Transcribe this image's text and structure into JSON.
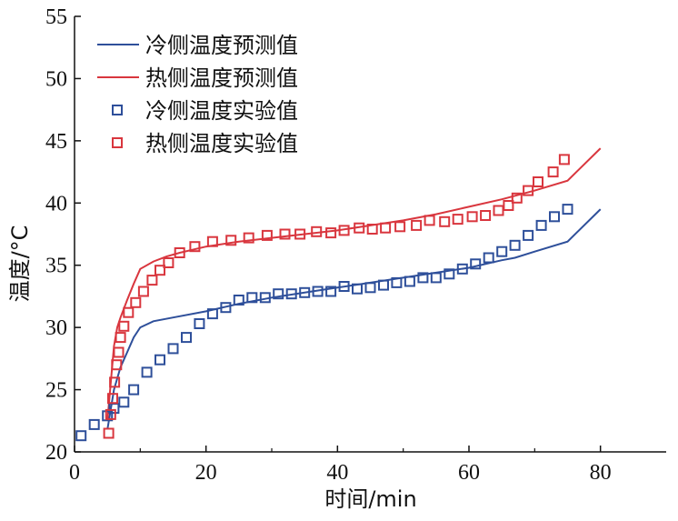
{
  "chart_data": {
    "type": "line",
    "title": "",
    "xlabel": "时间/min",
    "ylabel": "温度/°C",
    "xlim": [
      0,
      90
    ],
    "ylim": [
      20,
      55
    ],
    "xticks": [
      0,
      20,
      40,
      60,
      80
    ],
    "yticks": [
      20,
      25,
      30,
      35,
      40,
      45,
      50,
      55
    ],
    "grid": false,
    "legend_position": "top-left",
    "series": [
      {
        "name": "冷侧温度预测值",
        "kind": "line",
        "color": "#2e4f9a",
        "x": [
          5,
          6,
          7,
          8,
          9,
          10,
          12,
          15,
          20,
          25,
          30,
          35,
          40,
          45,
          50,
          55,
          60,
          65,
          67,
          70,
          75,
          80
        ],
        "y": [
          21.8,
          25.0,
          26.8,
          28.0,
          29.2,
          30.0,
          30.5,
          30.8,
          31.3,
          31.9,
          32.4,
          32.8,
          33.2,
          33.6,
          34.0,
          34.4,
          34.8,
          35.4,
          35.6,
          36.1,
          36.9,
          39.5
        ]
      },
      {
        "name": "热侧温度预测值",
        "kind": "line",
        "color": "#d9363e",
        "x": [
          5,
          5.5,
          6,
          6.5,
          7,
          8,
          9,
          10,
          12,
          14,
          16,
          20,
          25,
          30,
          35,
          40,
          45,
          50,
          55,
          60,
          65,
          70,
          75,
          80
        ],
        "y": [
          22.5,
          25.5,
          28.5,
          30.0,
          30.8,
          32.2,
          33.5,
          34.7,
          35.3,
          35.7,
          36.0,
          36.5,
          36.9,
          37.2,
          37.5,
          37.8,
          38.2,
          38.6,
          39.1,
          39.7,
          40.3,
          41.0,
          41.8,
          44.4
        ]
      },
      {
        "name": "冷侧温度实验值",
        "kind": "scatter",
        "color": "#2e4f9a",
        "x": [
          1,
          3,
          5,
          6,
          7.5,
          9,
          11,
          13,
          15,
          17,
          19,
          21,
          23,
          25,
          27,
          29,
          31,
          33,
          35,
          37,
          39,
          41,
          43,
          45,
          47,
          49,
          51,
          53,
          55,
          57,
          59,
          61,
          63,
          65,
          67,
          69,
          71,
          73,
          75
        ],
        "y": [
          21.3,
          22.2,
          22.9,
          23.5,
          24.0,
          25.0,
          26.4,
          27.4,
          28.3,
          29.2,
          30.3,
          31.1,
          31.6,
          32.2,
          32.4,
          32.4,
          32.7,
          32.7,
          32.8,
          32.9,
          32.9,
          33.3,
          33.1,
          33.2,
          33.4,
          33.6,
          33.7,
          34.0,
          34.0,
          34.3,
          34.7,
          35.1,
          35.6,
          36.1,
          36.6,
          37.4,
          38.2,
          38.9,
          39.5
        ]
      },
      {
        "name": "热侧温度实验值",
        "kind": "scatter",
        "color": "#d9363e",
        "x": [
          5.2,
          5.5,
          5.8,
          6.1,
          6.4,
          6.7,
          7.0,
          7.5,
          8.2,
          9.3,
          10.5,
          11.8,
          13.0,
          14.3,
          16.0,
          18.3,
          21.0,
          23.8,
          26.5,
          29.3,
          32.0,
          34.3,
          36.8,
          39.0,
          41.0,
          43.3,
          45.3,
          47.3,
          49.5,
          52.0,
          54.0,
          56.3,
          58.3,
          60.5,
          62.5,
          64.5,
          66.0,
          67.3,
          69.0,
          70.5,
          72.8,
          74.5
        ],
        "y": [
          21.5,
          23.0,
          24.3,
          25.6,
          27.0,
          28.0,
          29.2,
          30.1,
          31.2,
          32.0,
          32.9,
          33.8,
          34.6,
          35.2,
          36.0,
          36.5,
          36.9,
          37.0,
          37.2,
          37.4,
          37.5,
          37.5,
          37.7,
          37.6,
          37.8,
          38.0,
          37.9,
          38.0,
          38.1,
          38.2,
          38.6,
          38.5,
          38.7,
          38.9,
          39.0,
          39.4,
          39.8,
          40.4,
          41.0,
          41.7,
          42.5,
          43.5
        ]
      }
    ]
  }
}
